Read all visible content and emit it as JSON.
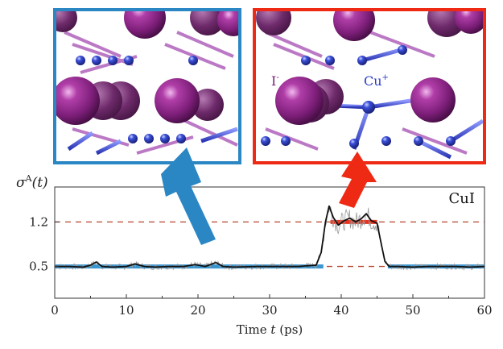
{
  "figure": {
    "y_axis_label": "σ",
    "y_axis_label_sup": "A",
    "y_axis_label_arg": "(t)",
    "x_axis_label_prefix": "Time",
    "x_axis_label_var": "t",
    "x_axis_label_unit": "(ps)",
    "material_label": "CuI",
    "ion_label_iodide": "I",
    "ion_label_iodide_sup": "-",
    "ion_label_copper": "Cu",
    "ion_label_copper_sup": "+"
  },
  "colors": {
    "left_panel_frame": "#2b86c4",
    "right_panel_frame": "#ee2a14",
    "iodide": "#8e2a8a",
    "copper": "#2b3cc4",
    "signal_smooth": "#111111",
    "signal_raw": "#9a9a9a",
    "low_state": "#3a95cf",
    "high_state": "#e8321e",
    "reference_line": "#b5472f"
  },
  "chart_data": {
    "type": "line",
    "xlim": [
      0,
      60
    ],
    "ylim": [
      0.0,
      1.75
    ],
    "x_ticks": [
      0,
      10,
      20,
      30,
      40,
      50,
      60
    ],
    "y_ticks": [
      0.5,
      1.2
    ],
    "reference_lines": [
      0.5,
      1.2
    ],
    "state_segments": [
      {
        "x_start": 0,
        "x_end": 37.5,
        "y": 0.5,
        "state": "low"
      },
      {
        "x_start": 38.5,
        "x_end": 45.0,
        "y": 1.2,
        "state": "high"
      },
      {
        "x_start": 46.5,
        "x_end": 60,
        "y": 0.5,
        "state": "low"
      }
    ],
    "series": [
      {
        "x": [
          0,
          2,
          4,
          5,
          5.8,
          6.6,
          8,
          10,
          11.2,
          12.5,
          14,
          16,
          18,
          19.6,
          21,
          22.5,
          23.5,
          25,
          28,
          31,
          34,
          36.5,
          37.2,
          37.8,
          38.3,
          38.9,
          39.6,
          40.4,
          41.2,
          42,
          42.8,
          43.5,
          44.2,
          45,
          45.6,
          46.1,
          46.7,
          48,
          50,
          52,
          54,
          56,
          58,
          60
        ],
        "y": [
          0.5,
          0.5,
          0.49,
          0.52,
          0.57,
          0.5,
          0.49,
          0.5,
          0.54,
          0.5,
          0.49,
          0.5,
          0.5,
          0.53,
          0.5,
          0.56,
          0.5,
          0.49,
          0.5,
          0.5,
          0.5,
          0.52,
          0.72,
          1.2,
          1.45,
          1.27,
          1.15,
          1.22,
          1.26,
          1.2,
          1.25,
          1.33,
          1.22,
          1.18,
          0.85,
          0.58,
          0.5,
          0.5,
          0.49,
          0.5,
          0.5,
          0.5,
          0.49,
          0.5
        ]
      }
    ]
  }
}
